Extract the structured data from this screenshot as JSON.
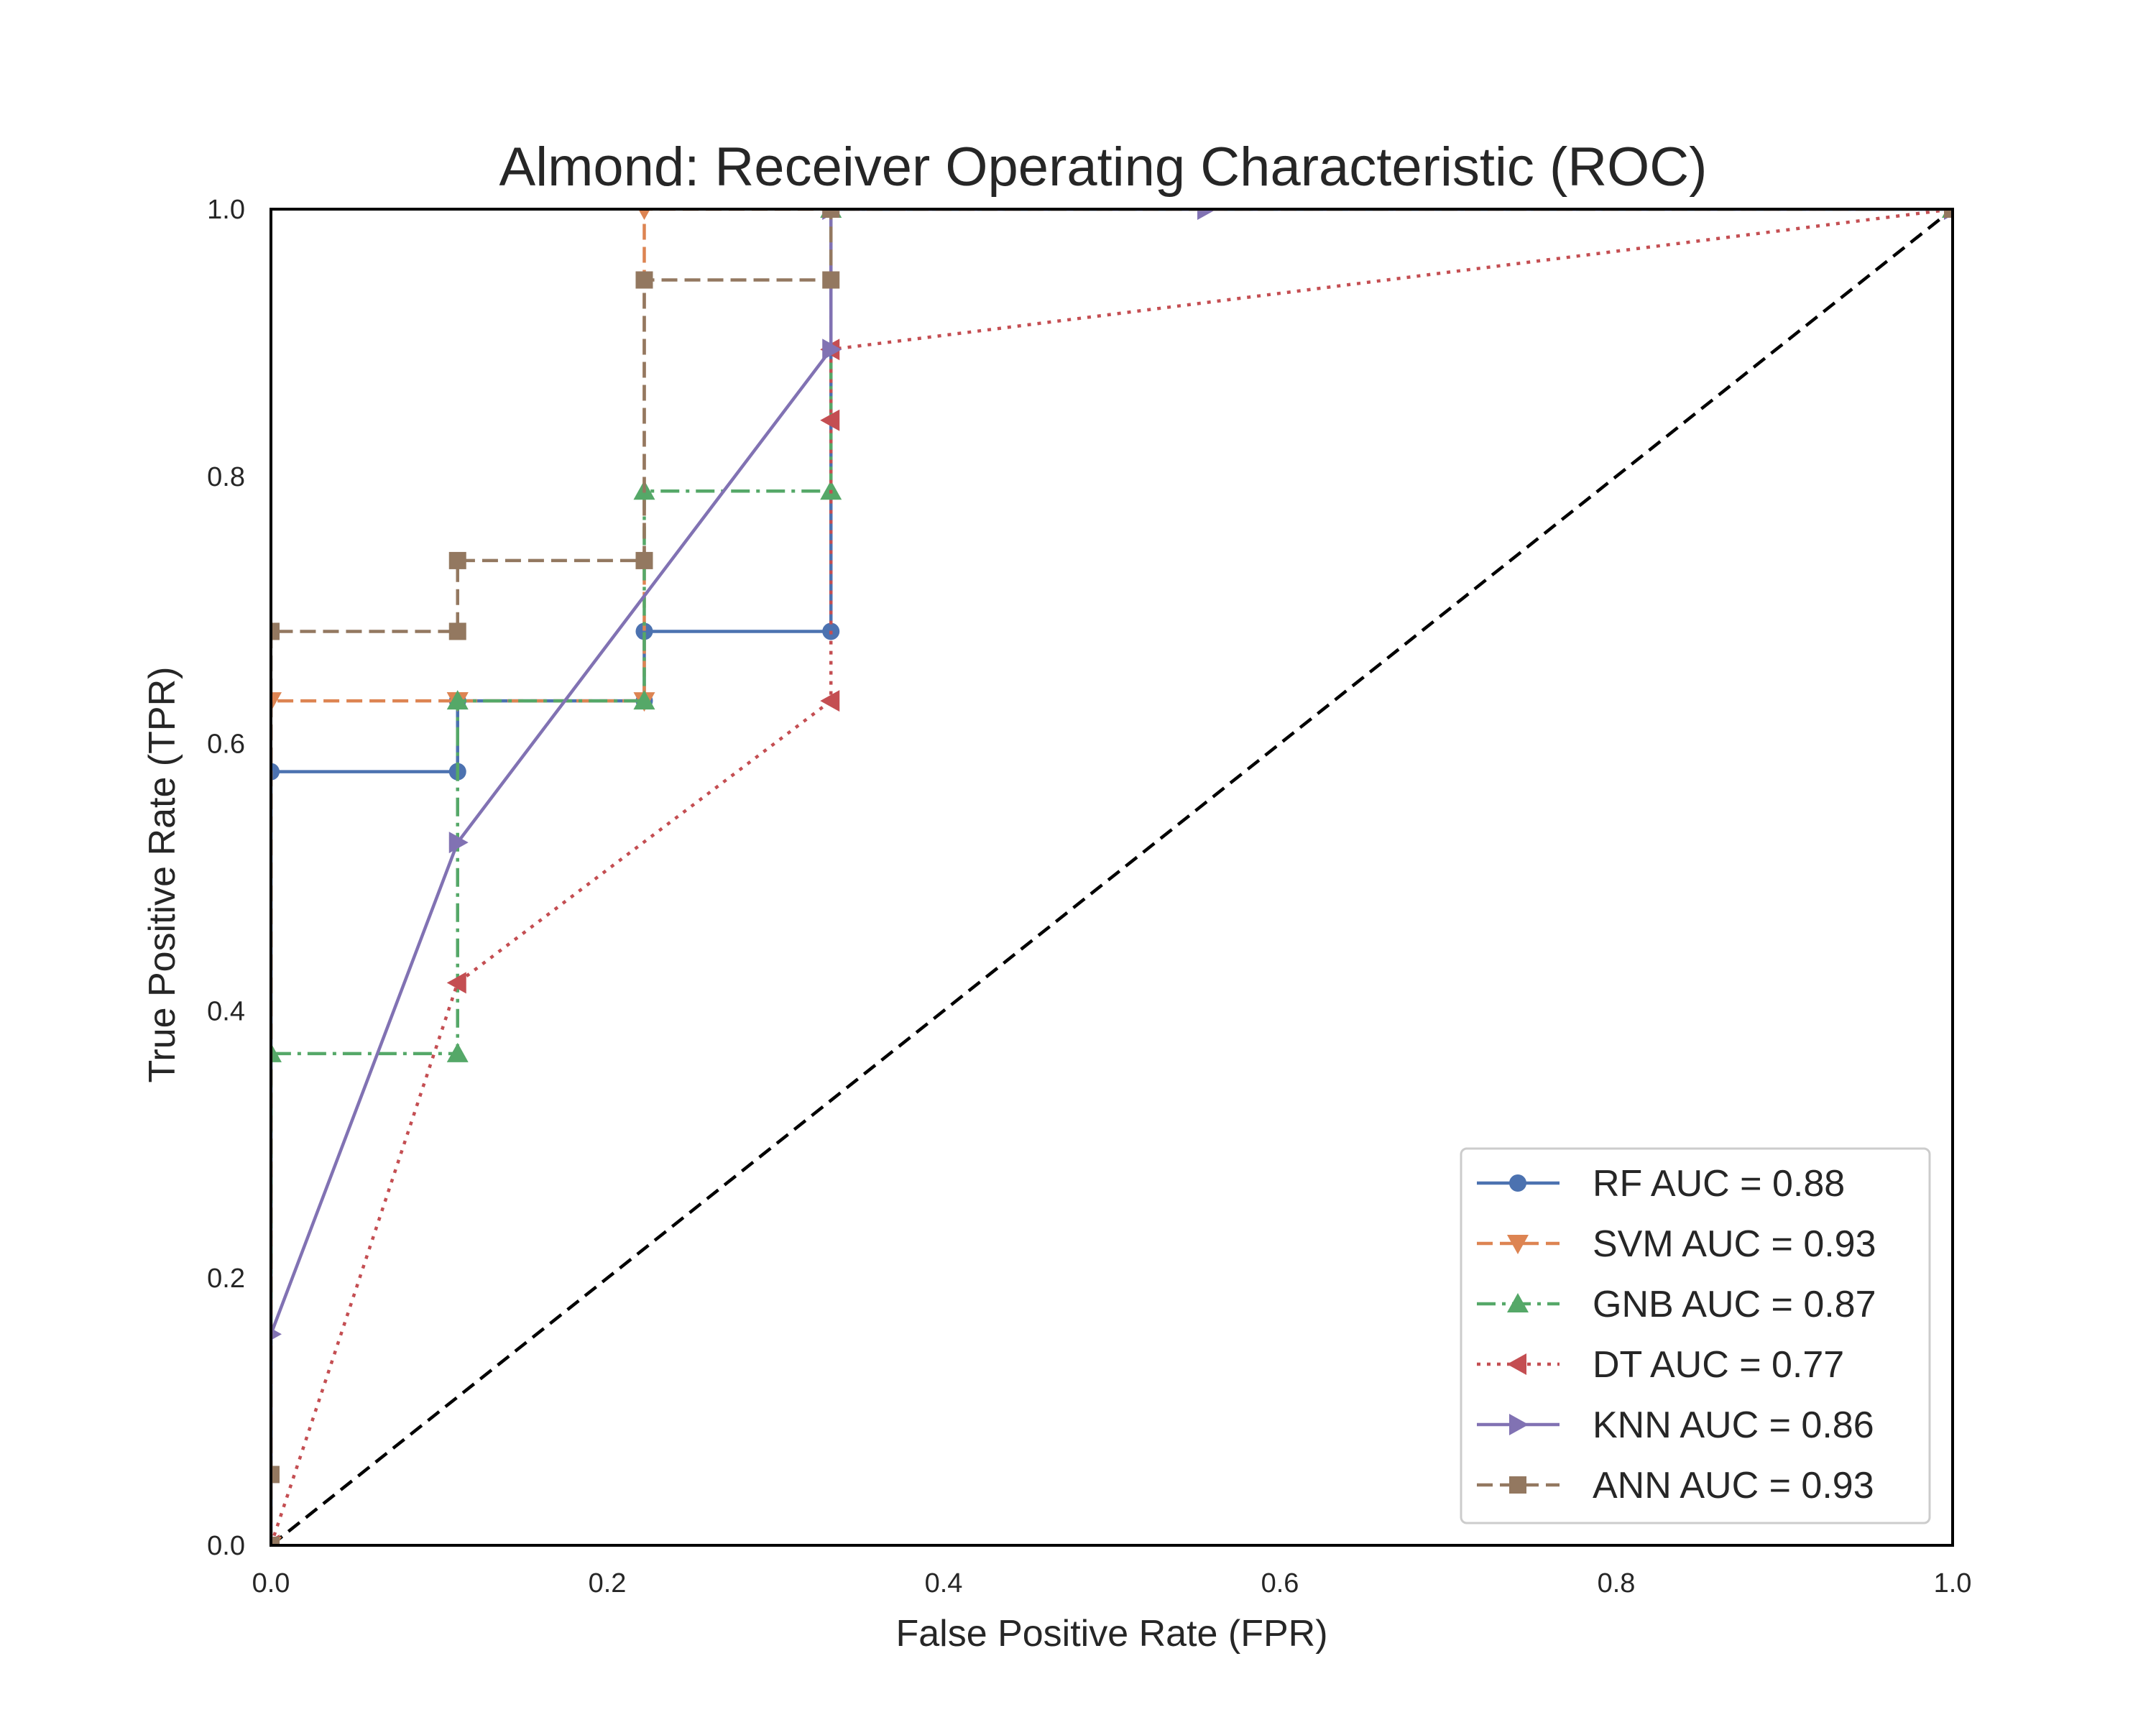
{
  "chart_data": {
    "type": "line",
    "title": "Almond: Receiver Operating Characteristic (ROC)",
    "xlabel": "False Positive Rate (FPR)",
    "ylabel": "True Positive Rate (TPR)",
    "xlim": [
      0,
      1
    ],
    "ylim": [
      0,
      1
    ],
    "xticks": [
      "0.0",
      "0.2",
      "0.4",
      "0.6",
      "0.8",
      "1.0"
    ],
    "yticks": [
      "0.0",
      "0.2",
      "0.4",
      "0.6",
      "0.8",
      "1.0"
    ],
    "grid": false,
    "legend_position": "lower-right",
    "diagonal": {
      "x": [
        0,
        1
      ],
      "y": [
        0,
        1
      ],
      "color": "#000000",
      "style": "dashed"
    },
    "series": [
      {
        "name": "RF AUC = 0.88",
        "color": "#4c72b0",
        "linestyle": "solid",
        "marker": "circle",
        "x": [
          0.0,
          0.0,
          0.111,
          0.111,
          0.222,
          0.222,
          0.333,
          0.333,
          1.0
        ],
        "y": [
          0.0,
          0.579,
          0.579,
          0.632,
          0.632,
          0.684,
          0.684,
          1.0,
          1.0
        ]
      },
      {
        "name": "SVM AUC = 0.93",
        "color": "#dd8452",
        "linestyle": "dashed",
        "marker": "triangle-down",
        "x": [
          0.0,
          0.0,
          0.111,
          0.111,
          0.222,
          0.222,
          0.333,
          1.0
        ],
        "y": [
          0.0,
          0.632,
          0.632,
          0.632,
          0.632,
          1.0,
          1.0,
          1.0
        ]
      },
      {
        "name": "GNB AUC = 0.87",
        "color": "#55a868",
        "linestyle": "dashdot",
        "marker": "triangle-up",
        "x": [
          0.0,
          0.0,
          0.111,
          0.111,
          0.222,
          0.222,
          0.333,
          0.333,
          1.0
        ],
        "y": [
          0.0,
          0.368,
          0.368,
          0.632,
          0.632,
          0.789,
          0.789,
          1.0,
          1.0
        ]
      },
      {
        "name": "DT AUC = 0.77",
        "color": "#c44e52",
        "linestyle": "dotted",
        "marker": "triangle-left",
        "x": [
          0.0,
          0.111,
          0.333,
          0.333,
          0.333,
          1.0
        ],
        "y": [
          0.0,
          0.421,
          0.632,
          0.842,
          0.895,
          1.0
        ]
      },
      {
        "name": "KNN AUC = 0.86",
        "color": "#8172b3",
        "linestyle": "solid",
        "marker": "triangle-right",
        "x": [
          0.0,
          0.0,
          0.111,
          0.333,
          0.333,
          0.556,
          1.0
        ],
        "y": [
          0.0,
          0.158,
          0.526,
          0.895,
          1.0,
          1.0,
          1.0
        ]
      },
      {
        "name": "ANN AUC = 0.93",
        "color": "#937860",
        "linestyle": "dashed",
        "marker": "square",
        "x": [
          0.0,
          0.0,
          0.0,
          0.111,
          0.111,
          0.222,
          0.222,
          0.333,
          0.333,
          1.0
        ],
        "y": [
          0.0,
          0.053,
          0.684,
          0.684,
          0.737,
          0.737,
          0.947,
          0.947,
          1.0,
          1.0
        ]
      }
    ]
  }
}
